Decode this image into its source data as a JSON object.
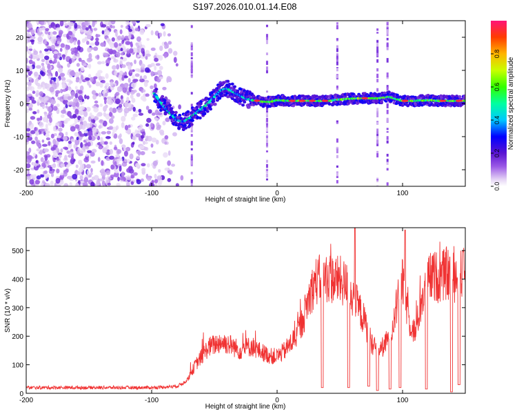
{
  "title": "S197.2026.010.01.14.E08",
  "chart_data": [
    {
      "type": "heatmap",
      "title": "S197.2026.010.01.14.E08",
      "xlabel": "Height of straight line (km)",
      "ylabel": "Frequency (Hz)",
      "xlim": [
        -200,
        150
      ],
      "ylim": [
        -25,
        25
      ],
      "xticks": [
        -200,
        -100,
        0,
        100
      ],
      "yticks": [
        -20,
        -10,
        0,
        10,
        20
      ],
      "colorbar": {
        "label": "Normalized spectral amplitude",
        "range": [
          0.0,
          1.0
        ],
        "ticks": [
          "0.0",
          "0.2",
          "0.4",
          "0.6",
          "0.8"
        ]
      },
      "ridge": {
        "description_points_km_hz": [
          [
            -95,
            1.5
          ],
          [
            -90,
            -1
          ],
          [
            -85,
            -3
          ],
          [
            -80,
            -5
          ],
          [
            -75,
            -5.5
          ],
          [
            -70,
            -4.5
          ],
          [
            -65,
            -3
          ],
          [
            -60,
            -1.5
          ],
          [
            -55,
            0
          ],
          [
            -50,
            2
          ],
          [
            -45,
            4
          ],
          [
            -40,
            4.5
          ],
          [
            -35,
            3.5
          ],
          [
            -30,
            2.5
          ],
          [
            -25,
            1.5
          ],
          [
            -20,
            1
          ],
          [
            -15,
            0.8
          ],
          [
            -10,
            0.5
          ],
          [
            -5,
            0.5
          ],
          [
            0,
            1
          ],
          [
            10,
            0.8
          ],
          [
            20,
            0.8
          ],
          [
            30,
            0.8
          ],
          [
            40,
            0.8
          ],
          [
            50,
            1.2
          ],
          [
            60,
            1.5
          ],
          [
            70,
            1.6
          ],
          [
            80,
            1.5
          ],
          [
            90,
            2
          ],
          [
            100,
            0.8
          ],
          [
            110,
            0.8
          ],
          [
            120,
            1
          ],
          [
            130,
            0.8
          ],
          [
            140,
            0.8
          ],
          [
            150,
            0.8
          ]
        ],
        "peak_amplitude": 0.95
      }
    },
    {
      "type": "line",
      "xlabel": "Height of straight line (km)",
      "ylabel": "SNR (10 * v/v)",
      "xlim": [
        -200,
        150
      ],
      "ylim": [
        0,
        580
      ],
      "xticks": [
        -200,
        -100,
        0,
        100
      ],
      "yticks": [
        0,
        100,
        200,
        300,
        400,
        500
      ],
      "color": "#f03232",
      "series": [
        {
          "name": "SNR",
          "x": [
            -200,
            -180,
            -160,
            -140,
            -120,
            -100,
            -90,
            -80,
            -75,
            -70,
            -65,
            -60,
            -55,
            -50,
            -45,
            -40,
            -35,
            -30,
            -25,
            -20,
            -15,
            -10,
            -5,
            0,
            5,
            10,
            15,
            20,
            25,
            30,
            35,
            40,
            45,
            50,
            55,
            60,
            65,
            70,
            75,
            80,
            85,
            90,
            95,
            100,
            105,
            110,
            115,
            120,
            125,
            130,
            135,
            140,
            145,
            150
          ],
          "y": [
            20,
            20,
            20,
            20,
            20,
            20,
            22,
            25,
            35,
            60,
            100,
            130,
            160,
            170,
            180,
            175,
            165,
            150,
            160,
            165,
            150,
            140,
            130,
            130,
            145,
            170,
            200,
            250,
            330,
            390,
            400,
            405,
            400,
            395,
            380,
            340,
            300,
            250,
            180,
            150,
            165,
            200,
            300,
            390,
            260,
            210,
            320,
            400,
            410,
            405,
            420,
            405,
            410,
            420
          ],
          "spikes": [
            {
              "x": 62,
              "y": 578
            },
            {
              "x": 102,
              "y": 572
            },
            {
              "x": 148,
              "y": 500
            }
          ],
          "dropouts": [
            {
              "x": 36,
              "y": 20
            },
            {
              "x": 57,
              "y": 20
            },
            {
              "x": 73,
              "y": 25
            },
            {
              "x": 80,
              "y": 10
            },
            {
              "x": 90,
              "y": 15
            },
            {
              "x": 98,
              "y": 20
            },
            {
              "x": 119,
              "y": 15
            },
            {
              "x": 139,
              "y": 5
            },
            {
              "x": 145,
              "y": 30
            }
          ]
        }
      ]
    }
  ]
}
